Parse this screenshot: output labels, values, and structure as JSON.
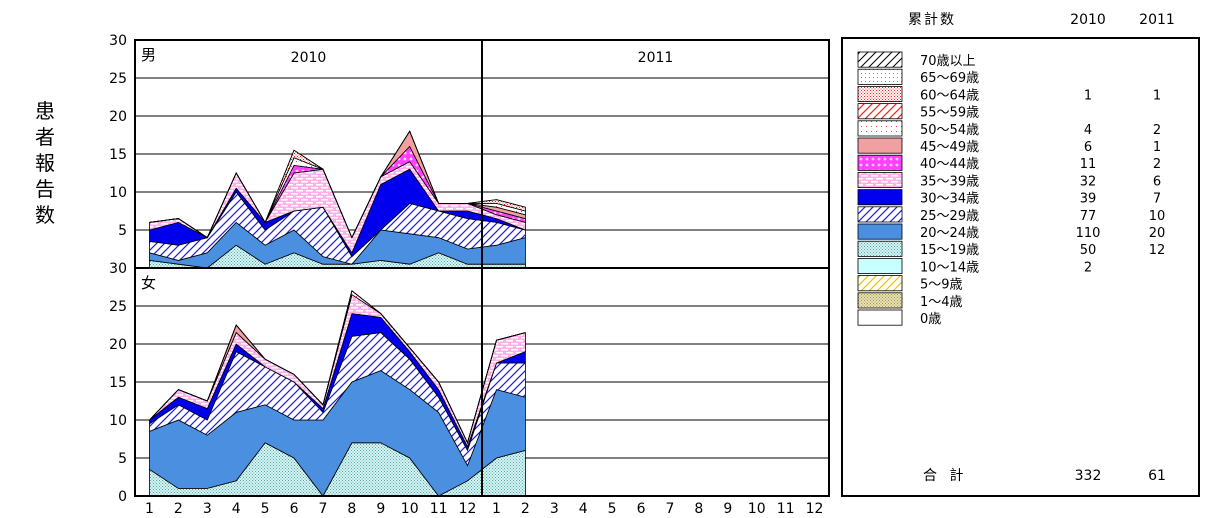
{
  "chart_data": {
    "type": "area",
    "stacked": true,
    "ylabel": "患者報告数",
    "x_tick_labels": [
      "1",
      "2",
      "3",
      "4",
      "5",
      "6",
      "7",
      "8",
      "9",
      "10",
      "11",
      "12",
      "1",
      "2",
      "3",
      "4",
      "5",
      "6",
      "7",
      "8",
      "9",
      "10",
      "11",
      "12"
    ],
    "year_labels": [
      "2010",
      "2011"
    ],
    "panels": [
      {
        "name": "男",
        "ylim": [
          0,
          30
        ],
        "y_ticks": [
          30,
          25,
          20,
          15,
          10,
          5
        ],
        "series": [
          {
            "name": "15～19歳",
            "values": [
              1,
              0.5,
              0,
              3,
              0.5,
              2,
              0.5,
              0.5,
              1,
              0.5,
              2,
              0.5,
              0.5,
              0.5
            ]
          },
          {
            "name": "20～24歳",
            "values": [
              1,
              0.5,
              2,
              3,
              2.5,
              3,
              1,
              0,
              4,
              4,
              2,
              2,
              2.5,
              3.5
            ]
          },
          {
            "name": "25～29歳",
            "values": [
              1.5,
              2,
              2,
              4,
              2,
              2.5,
              6.5,
              1,
              0,
              4,
              3.5,
              4,
              3,
              1
            ]
          },
          {
            "name": "30～34歳",
            "values": [
              1.5,
              3,
              0,
              0.5,
              1,
              0,
              0,
              0.5,
              6,
              4.5,
              0,
              1,
              0.5,
              0
            ]
          },
          {
            "name": "35～39歳",
            "values": [
              1,
              0.5,
              0,
              2,
              0,
              5,
              5,
              2,
              1,
              1,
              1,
              1,
              0.5,
              1
            ]
          },
          {
            "name": "40～44歳",
            "values": [
              0,
              0,
              0,
              0,
              0,
              1,
              0,
              0,
              0,
              2,
              0,
              0,
              0.5,
              0.5
            ]
          },
          {
            "name": "45～49歳",
            "values": [
              0,
              0,
              0,
              0,
              0,
              0,
              0,
              0,
              0,
              2,
              0,
              0,
              0.5,
              0.5
            ]
          },
          {
            "name": "50～54歳",
            "values": [
              0,
              0,
              0,
              0,
              0,
              1,
              0,
              0,
              0,
              0,
              0,
              0,
              0.5,
              0.5
            ]
          },
          {
            "name": "60～64歳",
            "values": [
              0,
              0,
              0,
              0,
              0,
              1,
              0,
              0,
              0,
              0,
              0,
              0,
              0.5,
              0.5
            ]
          },
          {
            "name": "70歳以上",
            "values": [
              0,
              0,
              0,
              0,
              0,
              0,
              0,
              0,
              0,
              0,
              0,
              0,
              0,
              0
            ]
          }
        ]
      },
      {
        "name": "女",
        "ylim": [
          0,
          30
        ],
        "y_ticks": [
          30,
          25,
          20,
          15,
          10,
          5,
          0
        ],
        "series": [
          {
            "name": "15～19歳",
            "values": [
              3.5,
              1,
              1,
              2,
              7,
              5,
              0,
              7,
              7,
              5,
              0,
              2,
              5,
              6
            ]
          },
          {
            "name": "20～24歳",
            "values": [
              5,
              9,
              7,
              9,
              5,
              5,
              10,
              8,
              9.5,
              9,
              11,
              2,
              9,
              7
            ]
          },
          {
            "name": "25～29歳",
            "values": [
              1,
              2,
              2,
              8,
              5,
              5,
              1,
              6,
              5,
              4,
              2,
              2,
              3.5,
              4.5
            ]
          },
          {
            "name": "30～34歳",
            "values": [
              0.5,
              1,
              1.5,
              1,
              0,
              0,
              0.5,
              3,
              2,
              1,
              1,
              0.5,
              0,
              1.5
            ]
          },
          {
            "name": "35～39歳",
            "values": [
              0,
              1,
              1,
              1.5,
              1,
              1,
              0.5,
              2.5,
              0.5,
              0.5,
              1,
              0.5,
              3,
              2.5
            ]
          },
          {
            "name": "40～44歳",
            "values": [
              0,
              0,
              0,
              0,
              0,
              0,
              0,
              0,
              0,
              0,
              0,
              0,
              0,
              0
            ]
          },
          {
            "name": "45～49歳",
            "values": [
              0,
              0,
              0,
              1,
              0,
              0,
              0,
              0,
              0,
              0,
              0,
              0,
              0,
              0
            ]
          },
          {
            "name": "50～54歳",
            "values": [
              0,
              0,
              0,
              0,
              0,
              0,
              0,
              0.5,
              0,
              0,
              0,
              0,
              0,
              0
            ]
          },
          {
            "name": "60～64歳",
            "values": [
              0,
              0,
              0,
              0,
              0,
              0,
              0,
              0,
              0,
              0,
              0,
              0,
              0,
              0
            ]
          },
          {
            "name": "70歳以上",
            "values": [
              0,
              0,
              0,
              0,
              0,
              0,
              0,
              0,
              0,
              0,
              0,
              0,
              0,
              0
            ]
          }
        ]
      }
    ]
  },
  "legend": {
    "header": {
      "label": "累計数",
      "col1": "2010",
      "col2": "2011"
    },
    "items": [
      {
        "label": "70歳以上",
        "v2010": "",
        "v2011": "",
        "pattern": "hatch-black"
      },
      {
        "label": "65～69歳",
        "v2010": "",
        "v2011": "",
        "pattern": "dots-gray"
      },
      {
        "label": "60～64歳",
        "v2010": "1",
        "v2011": "1",
        "pattern": "dots-red"
      },
      {
        "label": "55～59歳",
        "v2010": "",
        "v2011": "",
        "pattern": "hatch-red"
      },
      {
        "label": "50～54歳",
        "v2010": "4",
        "v2011": "2",
        "pattern": "dots-sparse-red"
      },
      {
        "label": "45～49歳",
        "v2010": "6",
        "v2011": "1",
        "pattern": "solid-salmon"
      },
      {
        "label": "40～44歳",
        "v2010": "11",
        "v2011": "2",
        "pattern": "polka-magenta"
      },
      {
        "label": "35～39歳",
        "v2010": "32",
        "v2011": "6",
        "pattern": "brick-pink"
      },
      {
        "label": "30～34歳",
        "v2010": "39",
        "v2011": "7",
        "pattern": "solid-blue"
      },
      {
        "label": "25～29歳",
        "v2010": "77",
        "v2011": "10",
        "pattern": "hatch-blue"
      },
      {
        "label": "20～24歳",
        "v2010": "110",
        "v2011": "20",
        "pattern": "solid-steelblue"
      },
      {
        "label": "15～19歳",
        "v2010": "50",
        "v2011": "12",
        "pattern": "dots-teal"
      },
      {
        "label": "10～14歳",
        "v2010": "2",
        "v2011": "",
        "pattern": "solid-cyan"
      },
      {
        "label": "5～9歳",
        "v2010": "",
        "v2011": "",
        "pattern": "hatch-yellow"
      },
      {
        "label": "1～4歳",
        "v2010": "",
        "v2011": "",
        "pattern": "dots-khaki"
      },
      {
        "label": "0歳",
        "v2010": "",
        "v2011": "",
        "pattern": "blank"
      }
    ],
    "total": {
      "label": "合 計",
      "v2010": "332",
      "v2011": "61"
    }
  },
  "colors": {
    "solid-blue": "#0000ee",
    "solid-steelblue": "#4a8fe0",
    "solid-salmon": "#f0a0a0",
    "solid-cyan": "#c8ffff",
    "pink": "#ffb0e8",
    "magenta": "#ff40ff",
    "teal": "#80c8c8",
    "red": "#ff2020",
    "yellow": "#e8c800",
    "khaki": "#c8c080"
  }
}
